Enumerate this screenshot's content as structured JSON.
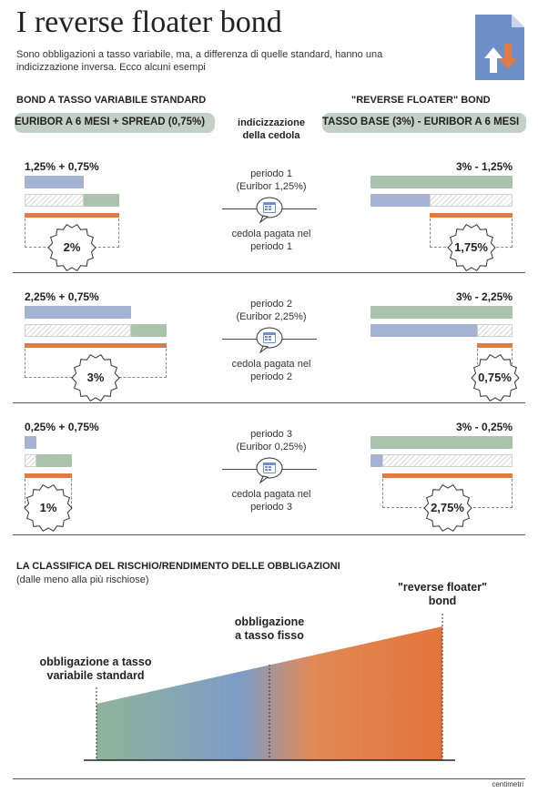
{
  "title": "I reverse floater bond",
  "intro": "Sono obbligazioni a tasso variabile, ma, a differenza di quelle standard, hanno una indicizzazione inversa. Ecco alcuni esempi",
  "icons": {
    "document": "document-arrows-icon",
    "calendar": "calendar-icon"
  },
  "colors": {
    "standard_blue": "#a4b3d3",
    "spread_green": "#a9c3ac",
    "coupon_orange": "#e07b43",
    "icon_blue": "#6f8fc9"
  },
  "left_column": {
    "heading": "BOND A TASSO VARIABILE STANDARD",
    "formula": "EURIBOR A 6 MESI + SPREAD (0,75%)"
  },
  "right_column": {
    "heading": "\"REVERSE FLOATER\" BOND",
    "formula": "TASSO BASE (3%) - EURIBOR A 6 MESI"
  },
  "center_heading": "indicizzazione della cedola",
  "periods": [
    {
      "left_label": "1,25% + 0,75%",
      "left_coupon": "2%",
      "period": "periodo 1",
      "euribor": "(Euribor 1,25%)",
      "coupon_caption": "cedola pagata nel periodo 1",
      "right_label": "3% - 1,25%",
      "right_coupon": "1,75%",
      "euribor_value": 1.25,
      "spread_value": 0.75,
      "base_value": 3
    },
    {
      "left_label": "2,25% + 0,75%",
      "left_coupon": "3%",
      "period": "periodo 2",
      "euribor": "(Euribor 2,25%)",
      "coupon_caption": "cedola pagata nel periodo 2",
      "right_label": "3% - 2,25%",
      "right_coupon": "0,75%",
      "euribor_value": 2.25,
      "spread_value": 0.75,
      "base_value": 3
    },
    {
      "left_label": "0,25% + 0,75%",
      "left_coupon": "1%",
      "period": "periodo 3",
      "euribor": "(Euribor 0,25%)",
      "coupon_caption": "cedola pagata nel periodo 3",
      "right_label": "3% - 0,25%",
      "right_coupon": "2,75%",
      "euribor_value": 0.25,
      "spread_value": 0.75,
      "base_value": 3
    }
  ],
  "ranking": {
    "title": "LA CLASSIFICA DEL RISCHIO/RENDIMENTO DELLE OBBLIGAZIONI",
    "subtitle": "(dalle meno alla più rischiose)",
    "items": [
      {
        "label_line1": "obbligazione a tasso",
        "label_line2": "variabile standard"
      },
      {
        "label_line1": "obbligazione",
        "label_line2": "a tasso fisso"
      },
      {
        "label_line1": "\"reverse floater\"",
        "label_line2": "bond"
      }
    ]
  },
  "credit": "centimetri"
}
